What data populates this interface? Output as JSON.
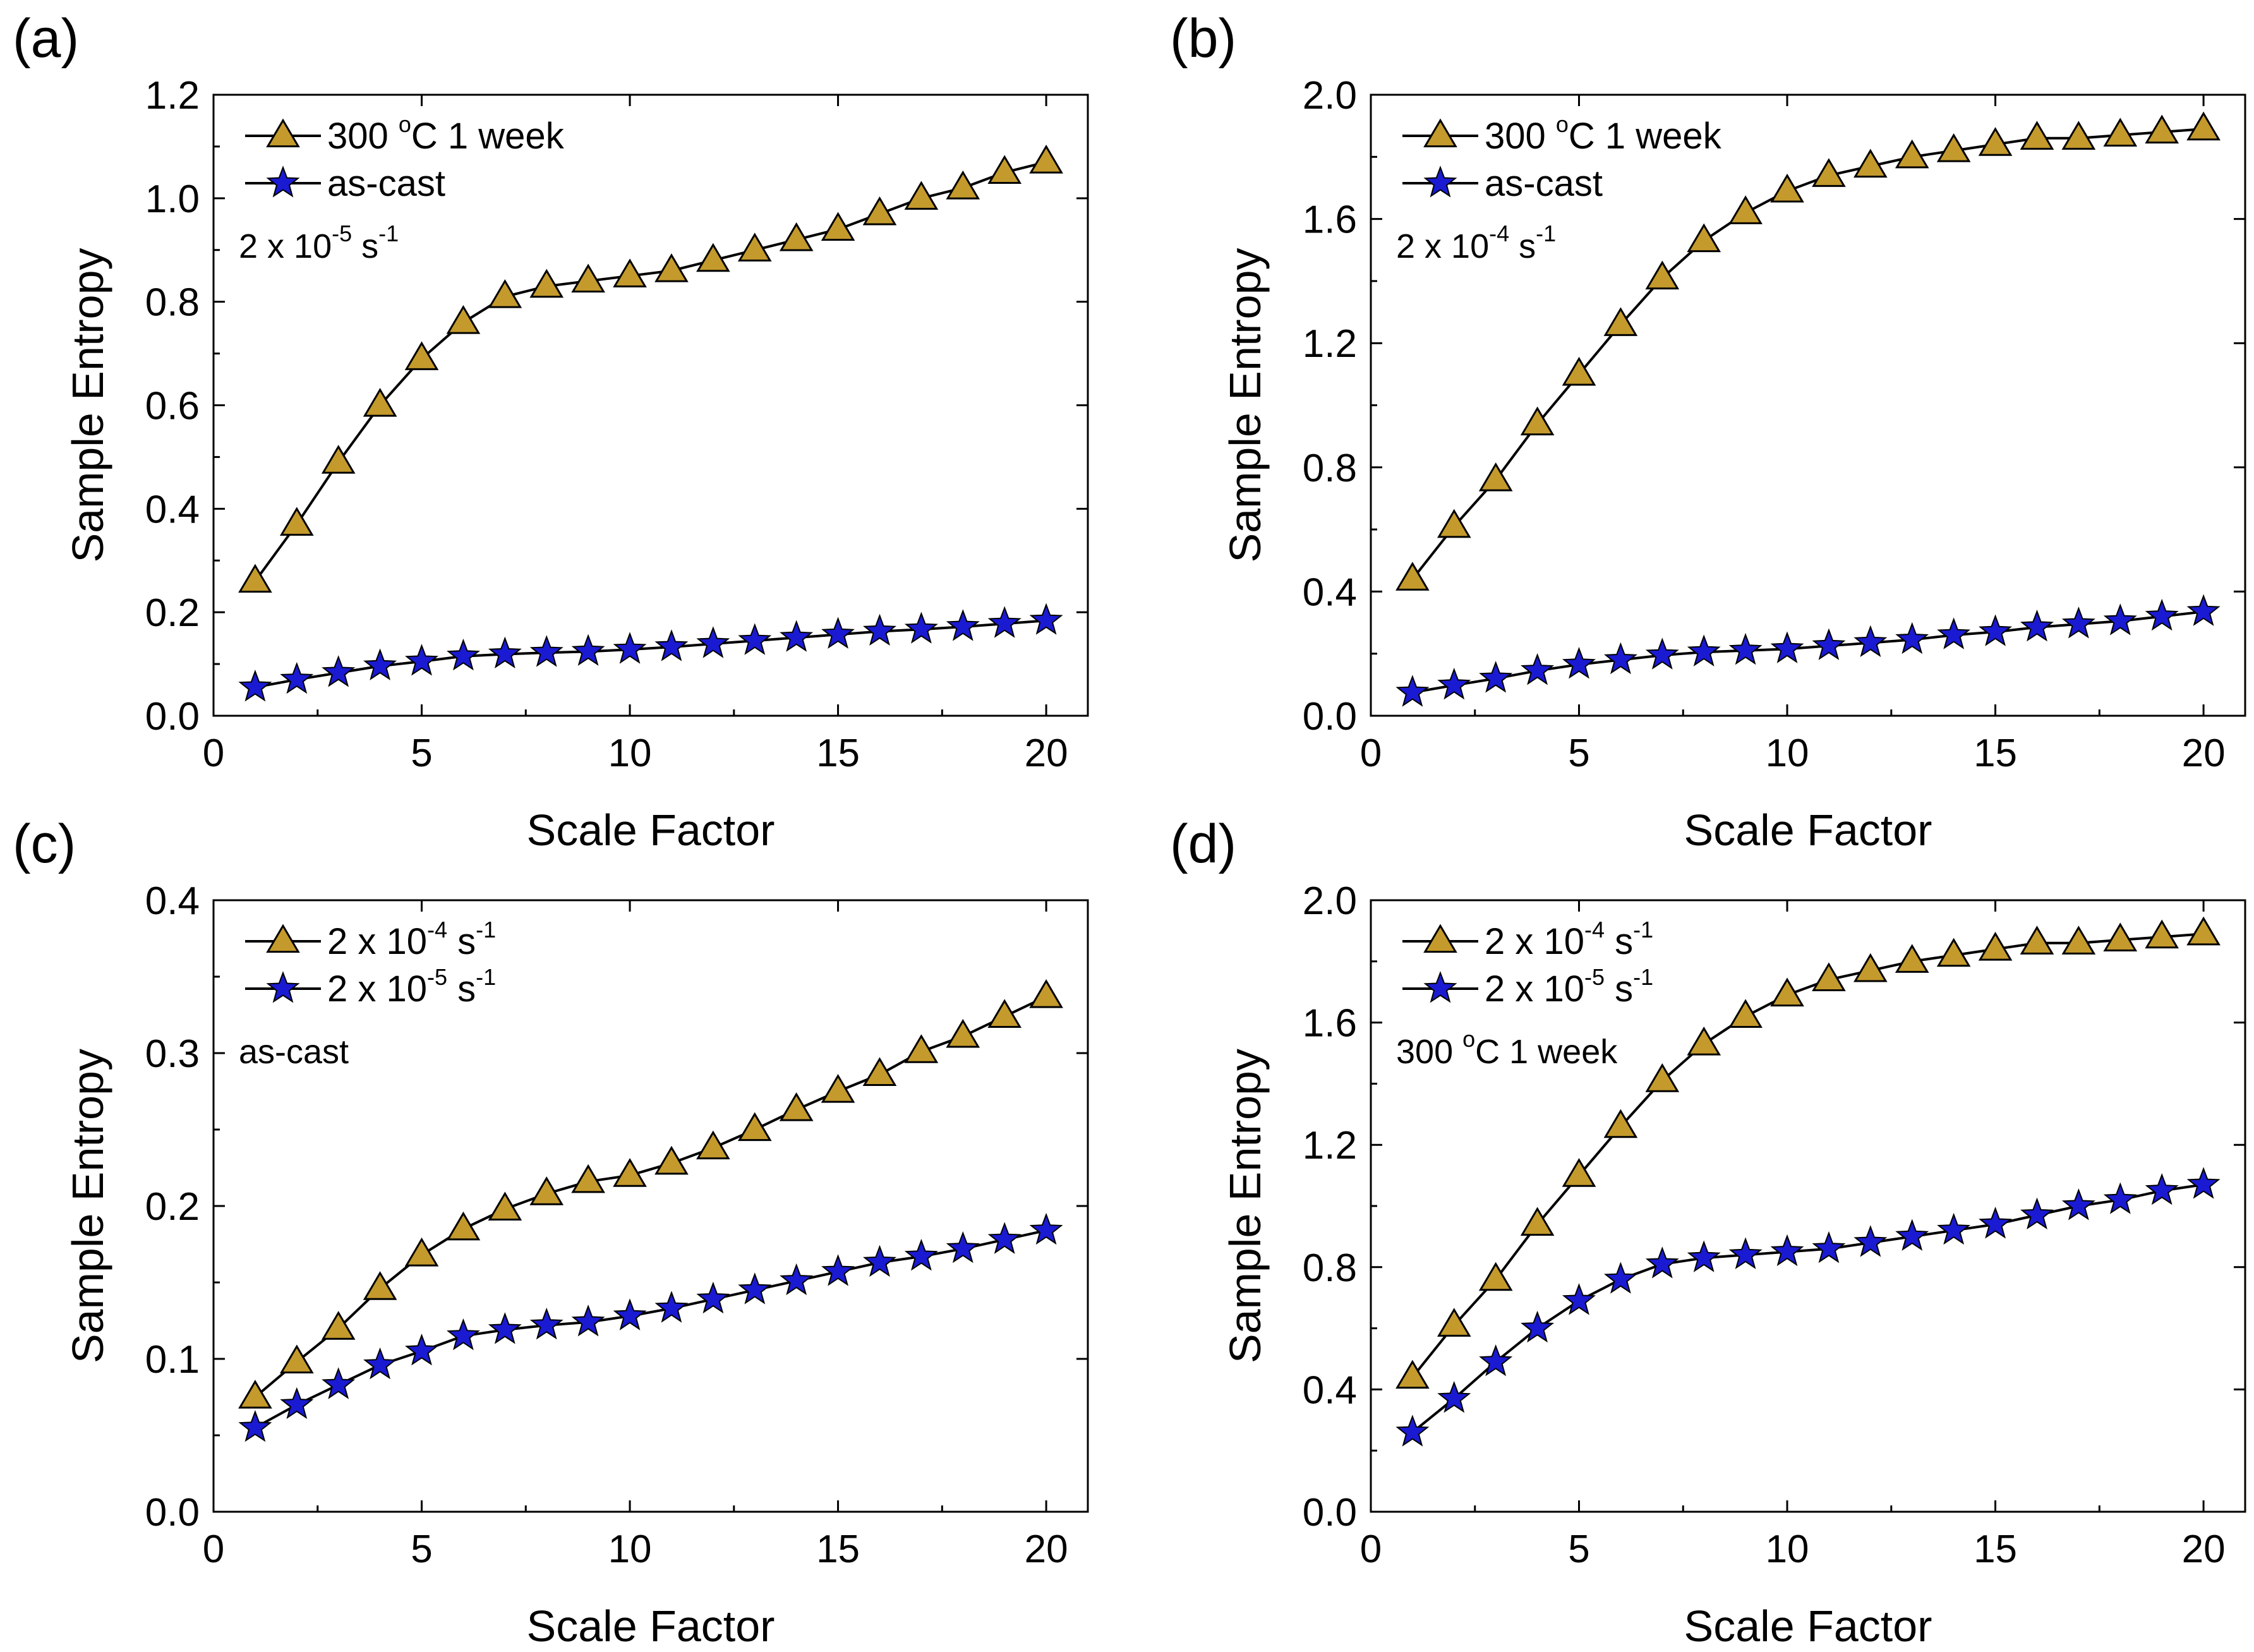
{
  "colors": {
    "triangle": "#c49a2c",
    "star": "#1a1ad2",
    "stroke": "#000000"
  },
  "chart_data": [
    {
      "type": "line",
      "panel": "(a)",
      "xlabel": "Scale Factor",
      "ylabel": "Sample Entropy",
      "xlim": [
        0,
        21
      ],
      "ylim": [
        0,
        1.2
      ],
      "xticks": [
        0,
        5,
        10,
        15,
        20
      ],
      "yticks": [
        0.0,
        0.2,
        0.4,
        0.6,
        0.8,
        1.0,
        1.2
      ],
      "ytick_labels": [
        "0.0",
        "0.2",
        "0.4",
        "0.6",
        "0.8",
        "1.0",
        "1.2"
      ],
      "annotation": {
        "base": "2 x 10",
        "sup": "-5",
        "tail": " s",
        "sup2": "-1"
      },
      "x": [
        1,
        2,
        3,
        4,
        5,
        6,
        7,
        8,
        9,
        10,
        11,
        12,
        13,
        14,
        15,
        16,
        17,
        18,
        19,
        20
      ],
      "series": [
        {
          "marker": "triangle",
          "legend": {
            "base": "300 ",
            "sup": "o",
            "tail": "C 1 week",
            "sup2": ""
          },
          "values": [
            0.26,
            0.37,
            0.49,
            0.6,
            0.69,
            0.76,
            0.81,
            0.83,
            0.84,
            0.85,
            0.86,
            0.88,
            0.9,
            0.92,
            0.94,
            0.97,
            1.0,
            1.02,
            1.05,
            1.07
          ]
        },
        {
          "marker": "star",
          "legend": {
            "base": "as-cast",
            "sup": "",
            "tail": "",
            "sup2": ""
          },
          "values": [
            0.055,
            0.07,
            0.083,
            0.096,
            0.105,
            0.115,
            0.119,
            0.122,
            0.124,
            0.128,
            0.133,
            0.139,
            0.145,
            0.151,
            0.157,
            0.163,
            0.167,
            0.172,
            0.178,
            0.184
          ]
        }
      ]
    },
    {
      "type": "line",
      "panel": "(b)",
      "xlabel": "Scale Factor",
      "ylabel": "Sample Entropy",
      "xlim": [
        0,
        21
      ],
      "ylim": [
        0,
        2.0
      ],
      "xticks": [
        0,
        5,
        10,
        15,
        20
      ],
      "yticks": [
        0.0,
        0.4,
        0.8,
        1.2,
        1.6,
        2.0
      ],
      "ytick_labels": [
        "0.0",
        "0.4",
        "0.8",
        "1.2",
        "1.6",
        "2.0"
      ],
      "annotation": {
        "base": "2 x 10",
        "sup": "-4",
        "tail": " s",
        "sup2": "-1"
      },
      "x": [
        1,
        2,
        3,
        4,
        5,
        6,
        7,
        8,
        9,
        10,
        11,
        12,
        13,
        14,
        15,
        16,
        17,
        18,
        19,
        20
      ],
      "series": [
        {
          "marker": "triangle",
          "legend": {
            "base": "300 ",
            "sup": "o",
            "tail": "C 1 week",
            "sup2": ""
          },
          "values": [
            0.44,
            0.61,
            0.76,
            0.94,
            1.1,
            1.26,
            1.41,
            1.53,
            1.62,
            1.69,
            1.74,
            1.77,
            1.8,
            1.82,
            1.84,
            1.86,
            1.86,
            1.87,
            1.88,
            1.89
          ]
        },
        {
          "marker": "star",
          "legend": {
            "base": "as-cast",
            "sup": "",
            "tail": "",
            "sup2": ""
          },
          "values": [
            0.075,
            0.098,
            0.12,
            0.145,
            0.165,
            0.18,
            0.195,
            0.205,
            0.21,
            0.215,
            0.225,
            0.235,
            0.245,
            0.26,
            0.27,
            0.285,
            0.295,
            0.305,
            0.32,
            0.335
          ]
        }
      ]
    },
    {
      "type": "line",
      "panel": "(c)",
      "xlabel": "Scale Factor",
      "ylabel": "Sample Entropy",
      "xlim": [
        0,
        21
      ],
      "ylim": [
        0,
        0.4
      ],
      "xticks": [
        0,
        5,
        10,
        15,
        20
      ],
      "yticks": [
        0.0,
        0.1,
        0.2,
        0.3,
        0.4
      ],
      "ytick_labels": [
        "0.0",
        "0.1",
        "0.2",
        "0.3",
        "0.4"
      ],
      "annotation": {
        "base": "as-cast",
        "sup": "",
        "tail": "",
        "sup2": ""
      },
      "x": [
        1,
        2,
        3,
        4,
        5,
        6,
        7,
        8,
        9,
        10,
        11,
        12,
        13,
        14,
        15,
        16,
        17,
        18,
        19,
        20
      ],
      "series": [
        {
          "marker": "triangle",
          "legend": {
            "base": "2 x 10",
            "sup": "-4",
            "tail": " s",
            "sup2": "-1"
          },
          "values": [
            0.075,
            0.098,
            0.12,
            0.146,
            0.168,
            0.185,
            0.198,
            0.208,
            0.216,
            0.22,
            0.228,
            0.238,
            0.25,
            0.263,
            0.275,
            0.286,
            0.301,
            0.311,
            0.324,
            0.337
          ]
        },
        {
          "marker": "star",
          "legend": {
            "base": "2 x 10",
            "sup": "-5",
            "tail": " s",
            "sup2": "-1"
          },
          "values": [
            0.055,
            0.07,
            0.083,
            0.096,
            0.105,
            0.115,
            0.119,
            0.122,
            0.124,
            0.128,
            0.133,
            0.139,
            0.145,
            0.151,
            0.157,
            0.163,
            0.167,
            0.172,
            0.178,
            0.184
          ]
        }
      ]
    },
    {
      "type": "line",
      "panel": "(d)",
      "xlabel": "Scale Factor",
      "ylabel": "Sample Entropy",
      "xlim": [
        0,
        21
      ],
      "ylim": [
        0,
        2.0
      ],
      "xticks": [
        0,
        5,
        10,
        15,
        20
      ],
      "yticks": [
        0.0,
        0.4,
        0.8,
        1.2,
        1.6,
        2.0
      ],
      "ytick_labels": [
        "0.0",
        "0.4",
        "0.8",
        "1.2",
        "1.6",
        "2.0"
      ],
      "annotation": {
        "base": "300 ",
        "sup": "o",
        "tail": "C 1 week",
        "sup2": ""
      },
      "x": [
        1,
        2,
        3,
        4,
        5,
        6,
        7,
        8,
        9,
        10,
        11,
        12,
        13,
        14,
        15,
        16,
        17,
        18,
        19,
        20
      ],
      "series": [
        {
          "marker": "triangle",
          "legend": {
            "base": "2 x 10",
            "sup": "-4",
            "tail": " s",
            "sup2": "-1"
          },
          "values": [
            0.44,
            0.61,
            0.76,
            0.94,
            1.1,
            1.26,
            1.41,
            1.53,
            1.62,
            1.69,
            1.74,
            1.77,
            1.8,
            1.82,
            1.84,
            1.86,
            1.86,
            1.87,
            1.88,
            1.89
          ]
        },
        {
          "marker": "star",
          "legend": {
            "base": "2 x 10",
            "sup": "-5",
            "tail": " s",
            "sup2": "-1"
          },
          "values": [
            0.26,
            0.37,
            0.49,
            0.6,
            0.69,
            0.76,
            0.81,
            0.83,
            0.84,
            0.85,
            0.86,
            0.88,
            0.9,
            0.92,
            0.94,
            0.97,
            1.0,
            1.02,
            1.05,
            1.07
          ]
        }
      ]
    }
  ]
}
